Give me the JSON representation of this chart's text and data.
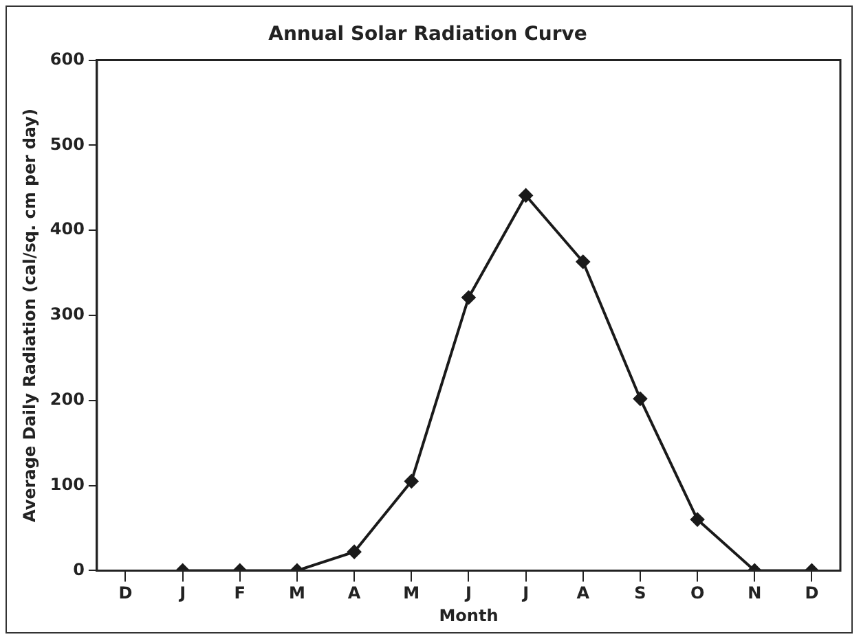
{
  "chart_data": {
    "type": "line",
    "title": "Annual Solar Radiation Curve",
    "xlabel": "Month",
    "ylabel": "Average Daily Radiation (cal/sq. cm per day)",
    "categories": [
      "D",
      "J",
      "F",
      "M",
      "A",
      "M",
      "J",
      "J",
      "A",
      "S",
      "O",
      "N",
      "D"
    ],
    "series": [
      {
        "color": "#1a1a1a",
        "values": [
          null,
          0,
          0,
          0,
          22,
          105,
          321,
          441,
          363,
          202,
          60,
          0,
          0
        ]
      }
    ],
    "ylim": [
      0,
      600
    ],
    "yticks": [
      0,
      100,
      200,
      300,
      400,
      500,
      600
    ],
    "grid": false,
    "legend": false,
    "marker": "diamond",
    "line_style": "solid"
  }
}
